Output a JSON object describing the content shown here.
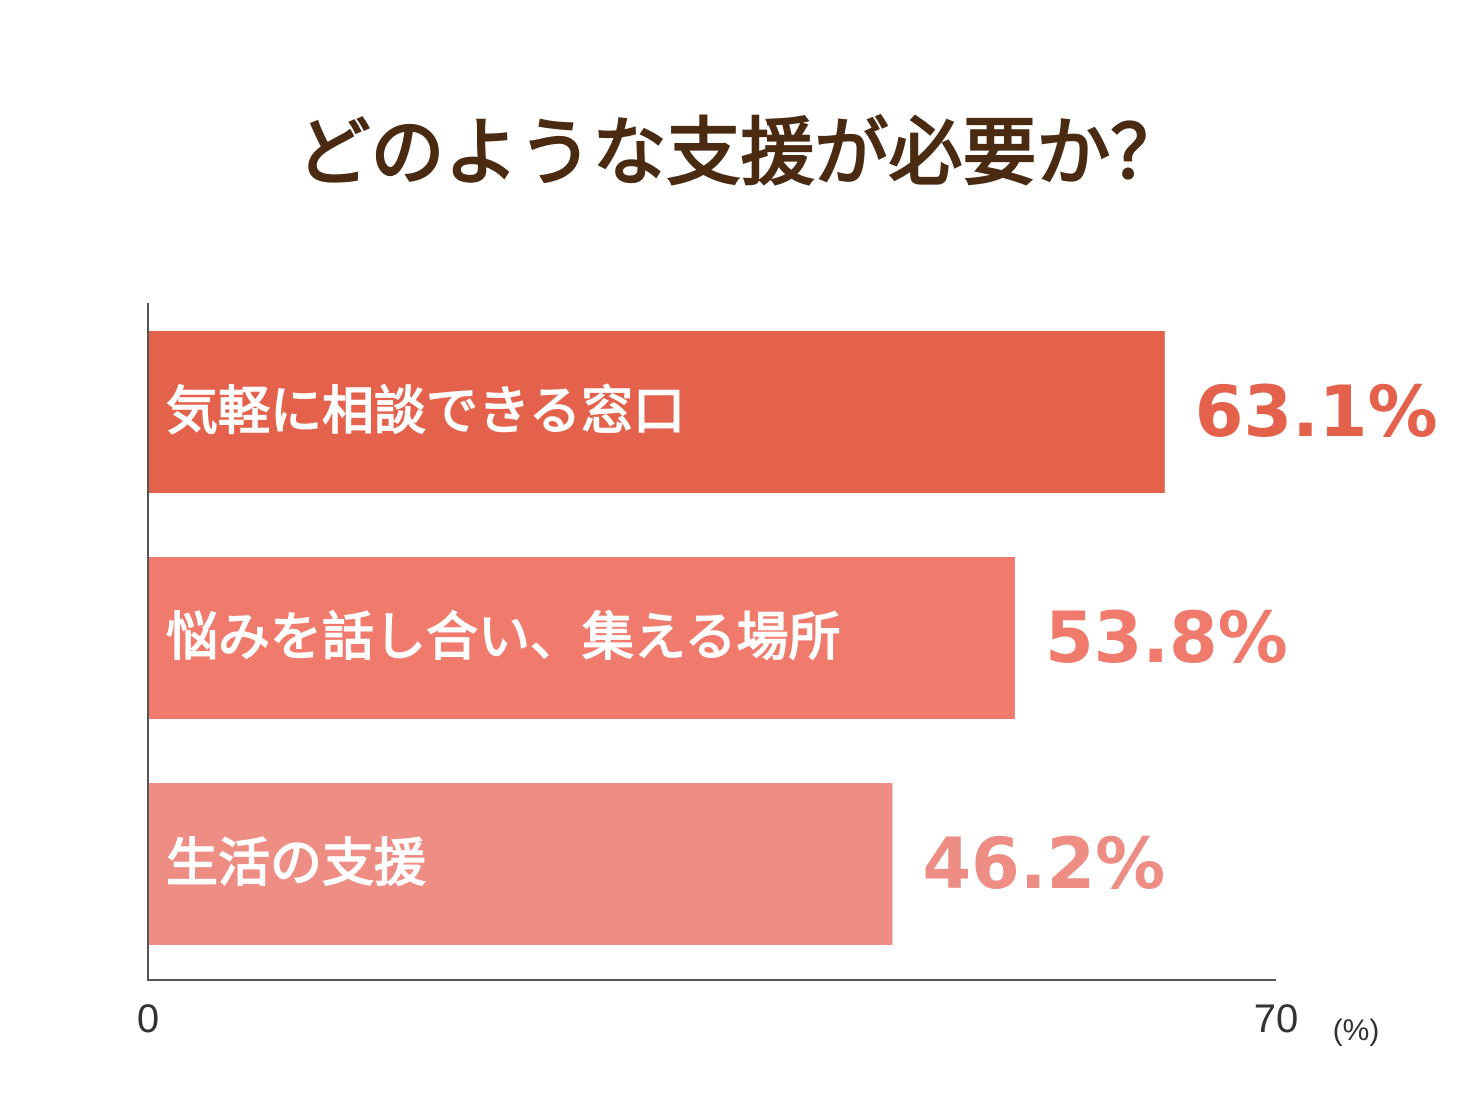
{
  "chart_data": {
    "type": "bar",
    "orientation": "horizontal",
    "title": "どのような支援が必要か？",
    "categories": [
      "気軽に相談できる窓口",
      "悩みを話し合い、集える場所",
      "生活の支援"
    ],
    "values": [
      63.1,
      53.8,
      46.2
    ],
    "value_labels": [
      "63.1%",
      "53.8%",
      "46.2%"
    ],
    "bar_colors": [
      "#e4614b",
      "#f07a6c",
      "#ee8d84"
    ],
    "value_label_colors": [
      "#e4614b",
      "#f07a6c",
      "#ee8d84"
    ],
    "xlim": [
      0,
      70
    ],
    "x_ticks": [
      "0",
      "70"
    ],
    "x_unit": "(%)",
    "grid": false,
    "legend": "none"
  },
  "colors": {
    "title": "#4a2a11",
    "axis": "#555555",
    "background": "#ffffff"
  }
}
